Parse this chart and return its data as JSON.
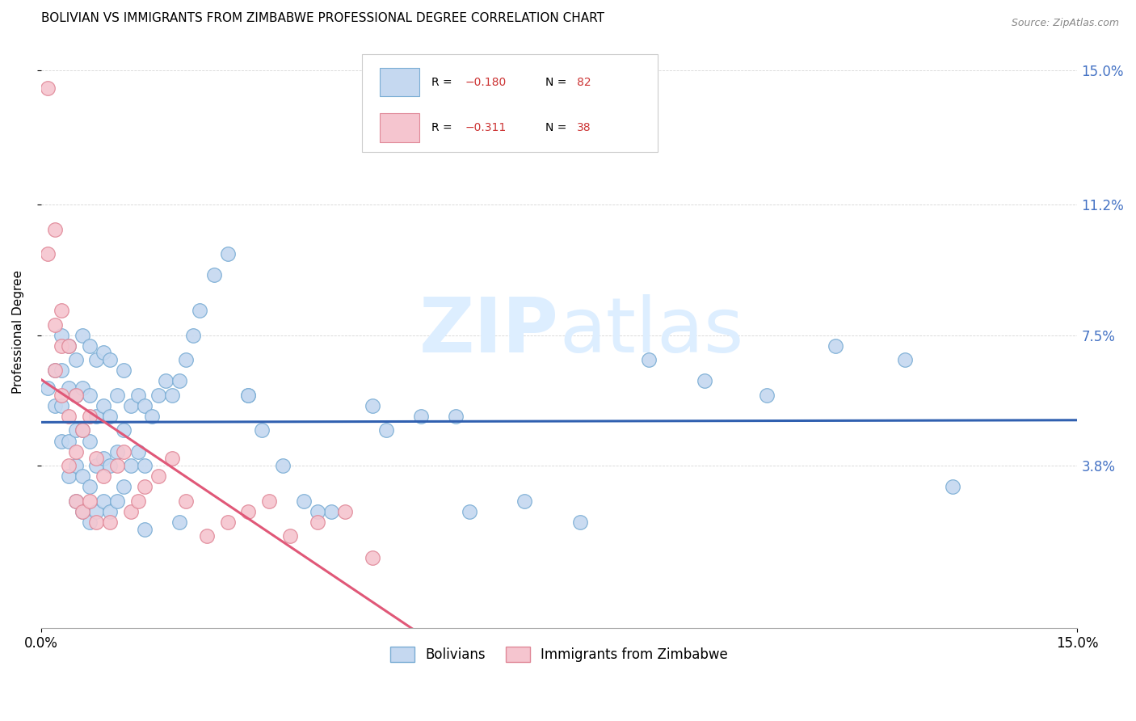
{
  "title": "BOLIVIAN VS IMMIGRANTS FROM ZIMBABWE PROFESSIONAL DEGREE CORRELATION CHART",
  "source": "Source: ZipAtlas.com",
  "ylabel": "Professional Degree",
  "ytick_values": [
    0.038,
    0.075,
    0.112,
    0.15
  ],
  "ytick_labels": [
    "3.8%",
    "7.5%",
    "11.2%",
    "15.0%"
  ],
  "xmin": 0.0,
  "xmax": 0.15,
  "ymin": -0.008,
  "ymax": 0.16,
  "bolivians_color": "#c5d8f0",
  "zimbabwe_color": "#f5c5cf",
  "bolivians_edge": "#7aadd4",
  "zimbabwe_edge": "#e08898",
  "trend_bolivians_color": "#3060b0",
  "trend_zimbabwe_color": "#e05878",
  "watermark_color": "#ddeeff",
  "bolivians_x": [
    0.001,
    0.002,
    0.002,
    0.003,
    0.003,
    0.003,
    0.003,
    0.004,
    0.004,
    0.004,
    0.004,
    0.005,
    0.005,
    0.005,
    0.005,
    0.005,
    0.006,
    0.006,
    0.006,
    0.006,
    0.006,
    0.007,
    0.007,
    0.007,
    0.007,
    0.007,
    0.008,
    0.008,
    0.008,
    0.008,
    0.009,
    0.009,
    0.009,
    0.009,
    0.01,
    0.01,
    0.01,
    0.01,
    0.011,
    0.011,
    0.011,
    0.012,
    0.012,
    0.012,
    0.013,
    0.013,
    0.014,
    0.014,
    0.015,
    0.015,
    0.016,
    0.017,
    0.018,
    0.019,
    0.02,
    0.021,
    0.022,
    0.023,
    0.025,
    0.027,
    0.03,
    0.032,
    0.035,
    0.038,
    0.042,
    0.048,
    0.055,
    0.062,
    0.07,
    0.078,
    0.088,
    0.096,
    0.105,
    0.115,
    0.125,
    0.132,
    0.06,
    0.05,
    0.04,
    0.03,
    0.02,
    0.015
  ],
  "bolivians_y": [
    0.06,
    0.055,
    0.065,
    0.045,
    0.055,
    0.065,
    0.075,
    0.035,
    0.045,
    0.06,
    0.072,
    0.028,
    0.038,
    0.048,
    0.058,
    0.068,
    0.025,
    0.035,
    0.048,
    0.06,
    0.075,
    0.022,
    0.032,
    0.045,
    0.058,
    0.072,
    0.025,
    0.038,
    0.052,
    0.068,
    0.028,
    0.04,
    0.055,
    0.07,
    0.025,
    0.038,
    0.052,
    0.068,
    0.028,
    0.042,
    0.058,
    0.032,
    0.048,
    0.065,
    0.038,
    0.055,
    0.042,
    0.058,
    0.038,
    0.055,
    0.052,
    0.058,
    0.062,
    0.058,
    0.062,
    0.068,
    0.075,
    0.082,
    0.092,
    0.098,
    0.058,
    0.048,
    0.038,
    0.028,
    0.025,
    0.055,
    0.052,
    0.025,
    0.028,
    0.022,
    0.068,
    0.062,
    0.058,
    0.072,
    0.068,
    0.032,
    0.052,
    0.048,
    0.025,
    0.058,
    0.022,
    0.02
  ],
  "zimbabwe_x": [
    0.001,
    0.001,
    0.002,
    0.002,
    0.002,
    0.003,
    0.003,
    0.003,
    0.004,
    0.004,
    0.004,
    0.005,
    0.005,
    0.005,
    0.006,
    0.006,
    0.007,
    0.007,
    0.008,
    0.008,
    0.009,
    0.01,
    0.011,
    0.012,
    0.013,
    0.014,
    0.015,
    0.017,
    0.019,
    0.021,
    0.024,
    0.027,
    0.03,
    0.033,
    0.036,
    0.04,
    0.044,
    0.048
  ],
  "zimbabwe_y": [
    0.145,
    0.098,
    0.105,
    0.065,
    0.078,
    0.058,
    0.072,
    0.082,
    0.038,
    0.052,
    0.072,
    0.028,
    0.042,
    0.058,
    0.025,
    0.048,
    0.028,
    0.052,
    0.022,
    0.04,
    0.035,
    0.022,
    0.038,
    0.042,
    0.025,
    0.028,
    0.032,
    0.035,
    0.04,
    0.028,
    0.018,
    0.022,
    0.025,
    0.028,
    0.018,
    0.022,
    0.025,
    0.012
  ]
}
